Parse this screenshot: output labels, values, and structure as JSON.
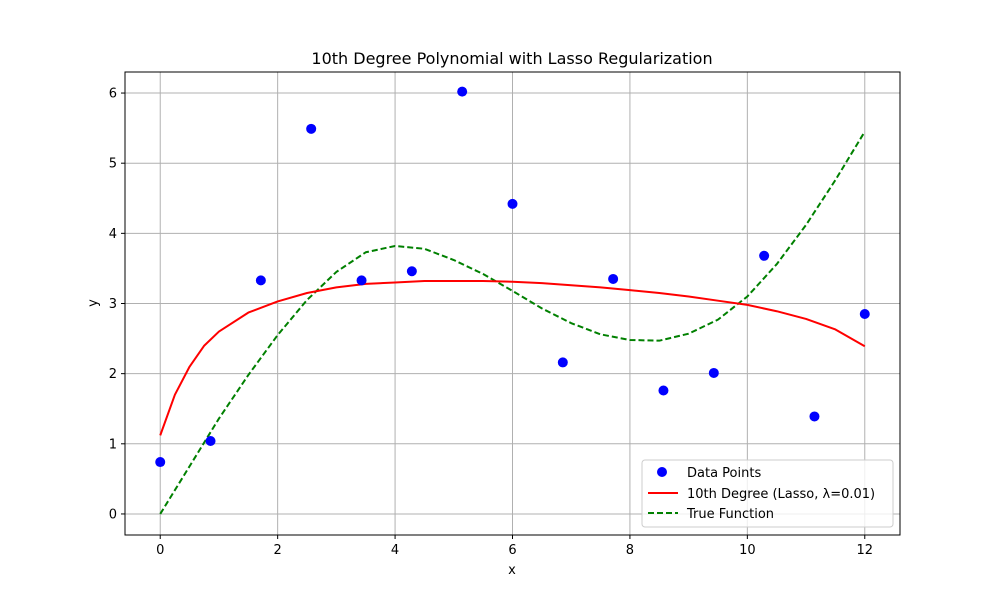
{
  "chart_data": {
    "type": "scatter",
    "title": "10th Degree Polynomial with Lasso Regularization",
    "xlabel": "x",
    "ylabel": "y",
    "xlim": [
      -0.6,
      12.6
    ],
    "ylim": [
      -0.3,
      6.3
    ],
    "xticks": [
      0,
      2,
      4,
      6,
      8,
      10,
      12
    ],
    "yticks": [
      0,
      1,
      2,
      3,
      4,
      5,
      6
    ],
    "grid": true,
    "legend_position": "lower-right",
    "series": [
      {
        "name": "Data Points",
        "kind": "scatter",
        "color": "#0000ff",
        "x": [
          0,
          0.857,
          1.714,
          2.571,
          3.429,
          4.286,
          5.143,
          6.0,
          6.857,
          7.714,
          8.571,
          9.429,
          10.286,
          11.143,
          12.0
        ],
        "y": [
          0.74,
          1.04,
          3.33,
          5.49,
          3.33,
          3.46,
          6.02,
          4.42,
          2.16,
          3.35,
          1.76,
          2.01,
          3.68,
          1.39,
          2.85
        ]
      },
      {
        "name": "10th Degree (Lasso, λ=0.01)",
        "kind": "line",
        "color": "#ff0000",
        "x": [
          0,
          0.25,
          0.5,
          0.75,
          1.0,
          1.5,
          2.0,
          2.5,
          3.0,
          3.5,
          4.0,
          4.5,
          5.0,
          5.5,
          6.0,
          6.5,
          7.0,
          7.5,
          8.0,
          8.5,
          9.0,
          9.5,
          10.0,
          10.5,
          11.0,
          11.5,
          12.0
        ],
        "y": [
          1.12,
          1.7,
          2.1,
          2.4,
          2.6,
          2.87,
          3.03,
          3.15,
          3.23,
          3.28,
          3.3,
          3.32,
          3.32,
          3.32,
          3.31,
          3.29,
          3.26,
          3.23,
          3.19,
          3.15,
          3.1,
          3.04,
          2.98,
          2.89,
          2.78,
          2.63,
          2.39
        ]
      },
      {
        "name": "True Function",
        "kind": "line",
        "dashed": true,
        "color": "#008000",
        "x": [
          0,
          0.5,
          1.0,
          1.5,
          2.0,
          2.5,
          3.0,
          3.5,
          4.0,
          4.5,
          5.0,
          5.5,
          6.0,
          6.5,
          7.0,
          7.5,
          8.0,
          8.5,
          9.0,
          9.5,
          10.0,
          10.5,
          11.0,
          11.5,
          12.0
        ],
        "y": [
          0.0,
          0.68,
          1.36,
          1.98,
          2.55,
          3.05,
          3.45,
          3.73,
          3.82,
          3.78,
          3.62,
          3.42,
          3.18,
          2.93,
          2.72,
          2.56,
          2.48,
          2.47,
          2.57,
          2.77,
          3.1,
          3.56,
          4.12,
          4.76,
          5.45
        ]
      }
    ]
  }
}
